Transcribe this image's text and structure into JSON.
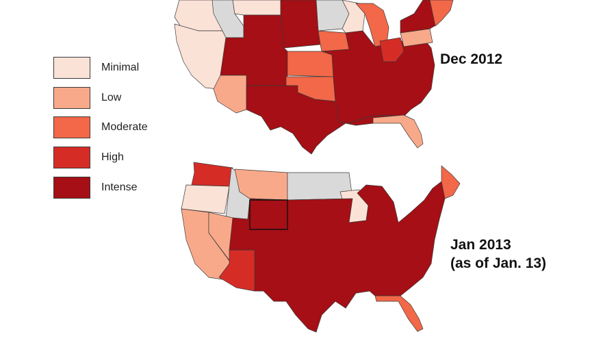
{
  "legend": {
    "items": [
      {
        "label": "Minimal",
        "color": "#fbe2d6"
      },
      {
        "label": "Low",
        "color": "#f8a98a"
      },
      {
        "label": "Moderate",
        "color": "#f26848"
      },
      {
        "label": "High",
        "color": "#d62c26"
      },
      {
        "label": "Intense",
        "color": "#a50f15"
      }
    ]
  },
  "no_data_color": "#d9d9d9",
  "maps": [
    {
      "label": "Dec 2012",
      "regions": [
        {
          "name": "pacific-northwest",
          "level": "Minimal"
        },
        {
          "name": "idaho",
          "level": "No data"
        },
        {
          "name": "montana",
          "level": "Minimal"
        },
        {
          "name": "dakotas",
          "level": "Intense"
        },
        {
          "name": "minnesota",
          "level": "No data"
        },
        {
          "name": "wisconsin",
          "level": "Minimal"
        },
        {
          "name": "michigan",
          "level": "Moderate"
        },
        {
          "name": "nevada-california",
          "level": "Minimal"
        },
        {
          "name": "utah-wyoming-colorado",
          "level": "Intense"
        },
        {
          "name": "kansas",
          "level": "Moderate"
        },
        {
          "name": "iowa",
          "level": "Moderate"
        },
        {
          "name": "midwest-south",
          "level": "Intense"
        },
        {
          "name": "ohio",
          "level": "High"
        },
        {
          "name": "pennsylvania",
          "level": "Low"
        },
        {
          "name": "new-york",
          "level": "Intense"
        },
        {
          "name": "new-england",
          "level": "Moderate"
        },
        {
          "name": "arizona",
          "level": "Low"
        },
        {
          "name": "oklahoma",
          "level": "Moderate"
        },
        {
          "name": "texas-south",
          "level": "Intense"
        },
        {
          "name": "florida",
          "level": "Low"
        }
      ]
    },
    {
      "label": "Jan 2013\n(as of Jan. 13)",
      "regions": [
        {
          "name": "washington",
          "level": "High"
        },
        {
          "name": "oregon",
          "level": "Minimal"
        },
        {
          "name": "idaho",
          "level": "No data"
        },
        {
          "name": "montana",
          "level": "Low"
        },
        {
          "name": "dakotas-minnesota",
          "level": "No data"
        },
        {
          "name": "wisconsin",
          "level": "Minimal"
        },
        {
          "name": "california",
          "level": "Low"
        },
        {
          "name": "nevada",
          "level": "Low"
        },
        {
          "name": "arizona",
          "level": "High"
        },
        {
          "name": "mountain-plains-east",
          "level": "Intense"
        },
        {
          "name": "wyoming",
          "level": "Intense"
        },
        {
          "name": "maine",
          "level": "Moderate"
        },
        {
          "name": "florida",
          "level": "Moderate"
        }
      ]
    }
  ]
}
